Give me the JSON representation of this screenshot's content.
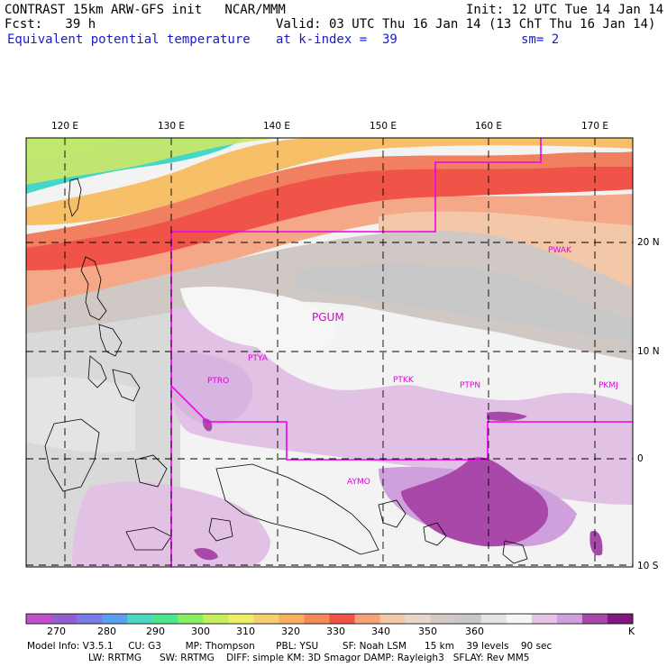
{
  "header": {
    "left_line1": "CONTRAST 15km ARW-GFS init   NCAR/MMM",
    "left_line2": "Fcst:   39 h",
    "field_name": "Equivalent potential temperature",
    "init": "Init: 12 UTC Tue 14 Jan 14",
    "valid": "Valid: 03 UTC Thu 16 Jan 14 (13 ChT Thu 16 Jan 14)",
    "level": "at k-index =  39",
    "smoothing": "sm= 2"
  },
  "map": {
    "lon_labels": [
      "120 E",
      "130 E",
      "140 E",
      "150 E",
      "160 E",
      "170 E"
    ],
    "lat_labels": [
      "20 N",
      "10 N",
      "0",
      "10 S"
    ],
    "stations": [
      "PGUM",
      "PTYA",
      "PTRO",
      "PTKK",
      "PTPN",
      "PKMJ",
      "PWAK",
      "AYMO"
    ],
    "station_color": "#dd00dd",
    "boundary_color": "#ee00ee"
  },
  "colorbar": {
    "labels": [
      "270",
      "280",
      "290",
      "300",
      "310",
      "320",
      "330",
      "340",
      "350",
      "360",
      "K"
    ],
    "colors": [
      "#c050c8",
      "#9060d0",
      "#7a7ae8",
      "#5aa0ee",
      "#4ad6c0",
      "#4ee68c",
      "#88ee66",
      "#c4ee5e",
      "#eeee66",
      "#f5d070",
      "#f8b060",
      "#f58a58",
      "#f05448",
      "#f8a07a",
      "#f2c8a8",
      "#e6d6cc",
      "#d2c8c4",
      "#c8c8c8",
      "#e4e4e4",
      "#f6f6f6",
      "#e6c4e6",
      "#d0a0dc",
      "#a848a8",
      "#801880"
    ]
  },
  "footer": {
    "line1": "Model Info: V3.5.1     CU: G3        MP: Thompson       PBL: YSU        SF: Noah LSM      15 km    39 levels    90 sec",
    "line2": "LW: RRTMG      SW: RRTMG    DIFF: simple KM: 3D Smagor DAMP: Rayleigh3   SFLAY: Rev MM5"
  }
}
